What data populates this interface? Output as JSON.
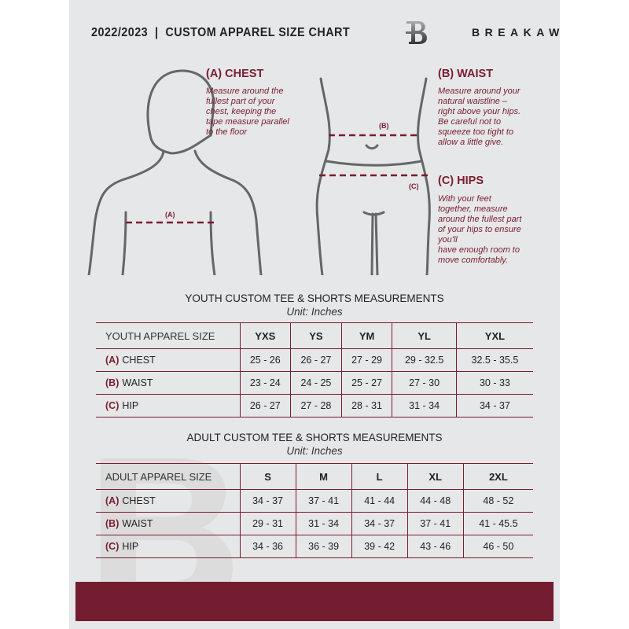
{
  "header": {
    "title": "2022/2023  |  CUSTOM APPAREL SIZE CHART",
    "brand": "BREAKAWAY",
    "logo_letter": "B"
  },
  "measure": {
    "chest": {
      "title": "(A) CHEST",
      "lines": [
        "Measure around the",
        "fullest part of your",
        "chest, keeping the",
        "tape measure parallel",
        "to the floor"
      ],
      "marker": "(A)"
    },
    "waist": {
      "title": "(B) WAIST",
      "lines": [
        "Measure around your",
        "natural waistline –",
        "right above your hips.",
        "Be careful not to",
        "squeeze too tight to",
        "allow a little give."
      ],
      "marker": "(B)"
    },
    "hips": {
      "title": "(C) HIPS",
      "lines": [
        "With your feet",
        "together, measure",
        "around the fullest part",
        "of your hips to ensure",
        "you'll",
        "have enough room to",
        "move comfortably."
      ],
      "marker": "(C)"
    }
  },
  "youth": {
    "title": "YOUTH CUSTOM TEE & SHORTS MEASUREMENTS",
    "unit": "Unit: Inches",
    "header": "YOUTH APPAREL SIZE",
    "sizes": [
      "YXS",
      "YS",
      "YM",
      "YL",
      "YXL"
    ],
    "rows": [
      {
        "letter": "(A)",
        "label": "CHEST",
        "values": [
          "25 - 26",
          "26 - 27",
          "27 - 29",
          "29 - 32.5",
          "32.5 - 35.5"
        ]
      },
      {
        "letter": "(B)",
        "label": "WAIST",
        "values": [
          "23 - 24",
          "24 - 25",
          "25 - 27",
          "27 - 30",
          "30 - 33"
        ]
      },
      {
        "letter": "(C)",
        "label": "HIP",
        "values": [
          "26 - 27",
          "27 - 28",
          "28 - 31",
          "31 - 34",
          "34 - 37"
        ]
      }
    ]
  },
  "adult": {
    "title": "ADULT CUSTOM TEE & SHORTS MEASUREMENTS",
    "unit": "Unit: Inches",
    "header": "ADULT APPAREL SIZE",
    "sizes": [
      "S",
      "M",
      "L",
      "XL",
      "2XL"
    ],
    "rows": [
      {
        "letter": "(A)",
        "label": "CHEST",
        "values": [
          "34 - 37",
          "37 - 41",
          "41 - 44",
          "44 - 48",
          "48 - 52"
        ]
      },
      {
        "letter": "(B)",
        "label": "WAIST",
        "values": [
          "29 - 31",
          "31 - 34",
          "34 - 37",
          "37 - 41",
          "41 - 45.5"
        ]
      },
      {
        "letter": "(C)",
        "label": "HIP",
        "values": [
          "34 - 36",
          "36 - 39",
          "39 - 42",
          "43 - 46",
          "46 - 50"
        ]
      }
    ]
  },
  "colors": {
    "accent": "#7a1c30",
    "background": "#e6e7e8",
    "footer": "#741c30"
  }
}
